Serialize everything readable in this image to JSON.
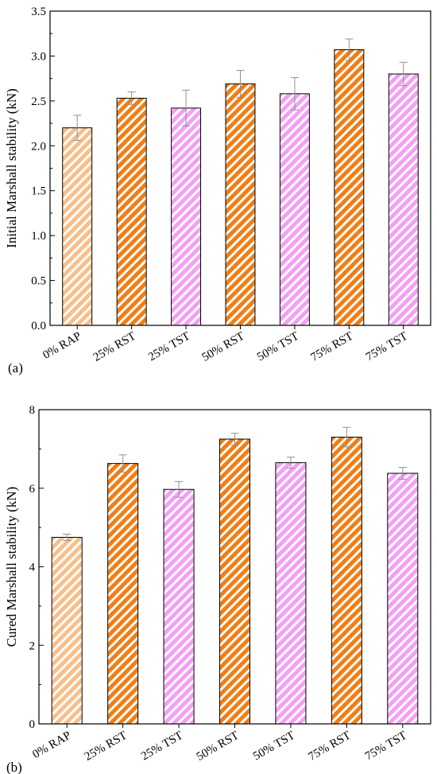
{
  "chart_data": [
    {
      "type": "bar",
      "panel_label": "(a)",
      "ylabel": "Initial Marshall stability (kN)",
      "categories": [
        "0% RAP",
        "25% RST",
        "25% TST",
        "50% RST",
        "50% TST",
        "75% RST",
        "75% TST"
      ],
      "values": [
        2.2,
        2.53,
        2.42,
        2.69,
        2.58,
        3.07,
        2.8
      ],
      "errors": [
        0.14,
        0.07,
        0.2,
        0.15,
        0.18,
        0.12,
        0.13
      ],
      "ylim": [
        0,
        3.5
      ],
      "yticks": [
        "0.0",
        "0.5",
        "1.0",
        "1.5",
        "2.0",
        "2.5",
        "3.0",
        "3.5"
      ],
      "grid": false
    },
    {
      "type": "bar",
      "panel_label": "(b)",
      "ylabel": "Cured Marshall stability (kN)",
      "categories": [
        "0% RAP",
        "25% RST",
        "25% TST",
        "50% RST",
        "50% TST",
        "75% RST",
        "75% TST"
      ],
      "values": [
        4.75,
        6.63,
        5.97,
        7.25,
        6.65,
        7.3,
        6.38
      ],
      "errors": [
        0.08,
        0.22,
        0.2,
        0.15,
        0.14,
        0.25,
        0.15
      ],
      "ylim": [
        0,
        8
      ],
      "yticks": [
        "0",
        "2",
        "4",
        "6",
        "8"
      ],
      "grid": false
    }
  ],
  "colors": {
    "RAP": "#f9bf8a",
    "RST": "#f07e16",
    "TST": "#f3a0f3",
    "error_bar": "#909090"
  }
}
